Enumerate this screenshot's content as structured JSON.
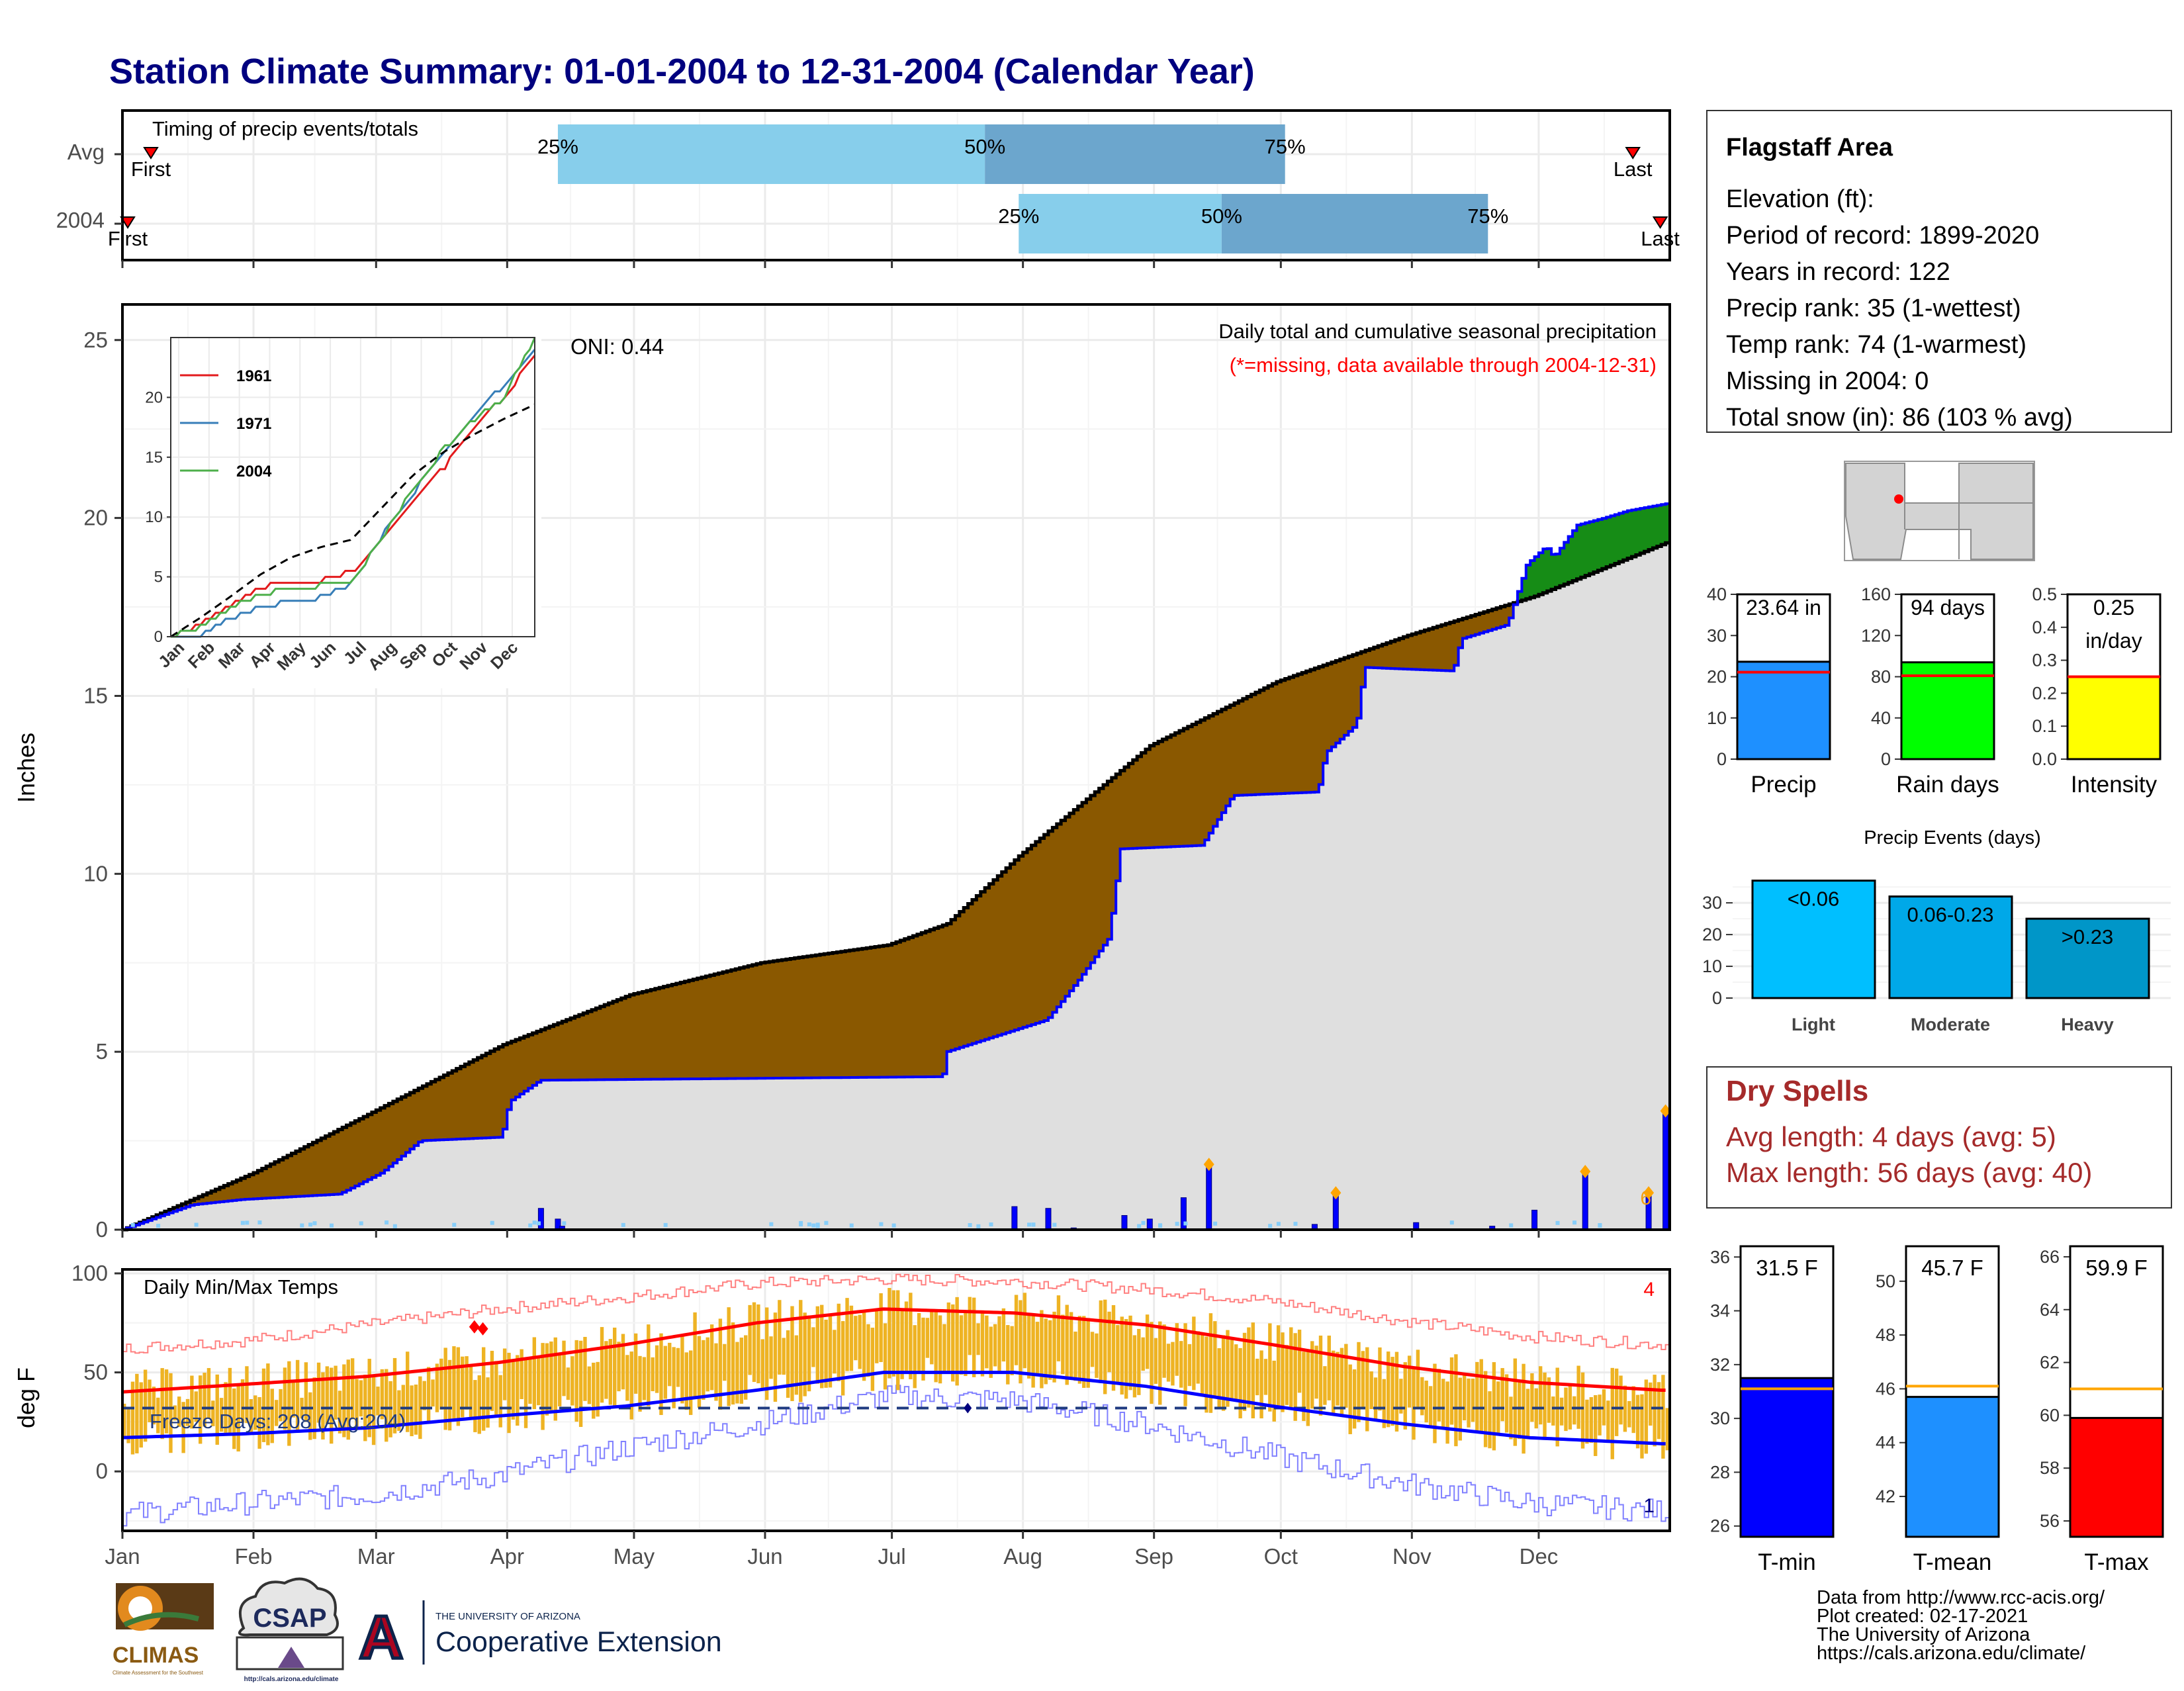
{
  "page_title": "Station Climate Summary: 01-01-2004 to 12-31-2004 (Calendar Year)",
  "months": [
    "Jan",
    "Feb",
    "Mar",
    "Apr",
    "May",
    "Jun",
    "Jul",
    "Aug",
    "Sep",
    "Oct",
    "Nov",
    "Dec"
  ],
  "colors": {
    "title": "#00007f",
    "dry_spell_red": "#a52a2a",
    "brown": "#8a5800",
    "green": "#168c16",
    "blue_line": "#0000ff",
    "grey_fill": "#dfdfdf",
    "temp_bar": "#eeb323",
    "precip_bar": "#1e90ff",
    "rain_bar": "#00ff00",
    "intensity_bar": "#ffff00",
    "light": "#00bfff",
    "moderate": "#00a8e8",
    "heavy": "#0096c8",
    "tmin": "#0000ff",
    "tmean": "#1e90ff",
    "tmax": "#ff0000"
  },
  "chart_data": [
    {
      "id": "timing",
      "type": "bar",
      "title": "Timing of precip events/totals",
      "rows": [
        {
          "label": "Avg",
          "first": "First",
          "last": "Last",
          "first_doy": 1,
          "last_doy": 365,
          "p25_doy": 104,
          "p50_doy": 205,
          "p75_doy": 276,
          "p25_label": "25%",
          "p50_label": "50%",
          "p75_label": "75%"
        },
        {
          "label": "2004",
          "first": "First",
          "last": "Last",
          "first_doy": 1,
          "last_doy": 366,
          "p25_doy": 213,
          "p50_doy": 261,
          "p75_doy": 324,
          "p25_label": "25%",
          "p50_label": "50%",
          "p75_label": "75%"
        }
      ]
    },
    {
      "id": "cumulative_precip",
      "type": "area",
      "title": "Daily total and cumulative seasonal precipitation",
      "subtitle": "(*=missing, data available through 2004-12-31)",
      "oni_label": "ONI: 0.44",
      "ylabel": "Inches",
      "ylim": [
        0,
        26
      ],
      "yticks": [
        0,
        5,
        10,
        15,
        20,
        25
      ],
      "corner_count": "6",
      "avg_cumulative": [
        [
          1,
          0
        ],
        [
          32,
          1.6
        ],
        [
          60,
          3.3
        ],
        [
          91,
          5.2
        ],
        [
          121,
          6.6
        ],
        [
          152,
          7.5
        ],
        [
          182,
          8.0
        ],
        [
          196,
          8.6
        ],
        [
          213,
          10.5
        ],
        [
          244,
          13.6
        ],
        [
          274,
          15.4
        ],
        [
          305,
          16.7
        ],
        [
          335,
          17.8
        ],
        [
          366,
          19.3
        ]
      ],
      "cumulative_2004": [
        [
          1,
          0
        ],
        [
          19,
          0.7
        ],
        [
          32,
          0.85
        ],
        [
          57,
          1.0
        ],
        [
          68,
          1.6
        ],
        [
          78,
          2.5
        ],
        [
          99,
          2.6
        ],
        [
          101,
          3.6
        ],
        [
          109,
          4.2
        ],
        [
          213,
          4.3
        ],
        [
          214,
          5.0
        ],
        [
          240,
          5.9
        ],
        [
          248,
          7.0
        ],
        [
          256,
          8.2
        ],
        [
          259,
          10.7
        ],
        [
          280,
          10.8
        ],
        [
          288,
          12.2
        ],
        [
          310,
          12.3
        ],
        [
          312,
          13.4
        ],
        [
          320,
          14.2
        ],
        [
          322,
          15.8
        ],
        [
          345,
          15.7
        ],
        [
          347,
          16.6
        ],
        [
          359,
          17.0
        ],
        [
          364,
          18.7
        ],
        [
          369,
          19.2
        ],
        [
          371,
          18.9
        ],
        [
          377,
          19.8
        ],
        [
          384,
          20.0
        ],
        [
          390,
          20.2
        ],
        [
          395,
          20.3
        ],
        [
          400,
          20.4
        ]
      ],
      "daily_bars": [
        [
          100,
          0.6
        ],
        [
          104,
          0.3
        ],
        [
          105,
          0.1
        ],
        [
          212,
          0.65
        ],
        [
          220,
          0.6
        ],
        [
          226,
          0.05
        ],
        [
          238,
          0.4
        ],
        [
          244,
          0.3
        ],
        [
          252,
          0.9
        ],
        [
          258,
          1.8
        ],
        [
          283,
          0.15
        ],
        [
          288,
          1.0
        ],
        [
          307,
          0.2
        ],
        [
          325,
          0.1
        ],
        [
          335,
          0.55
        ],
        [
          347,
          1.6
        ],
        [
          362,
          1.0
        ],
        [
          366,
          3.3
        ]
      ],
      "inset": {
        "ylim": [
          0,
          25
        ],
        "yticks": [
          0,
          5,
          10,
          15,
          20
        ],
        "xlabels": [
          "Jan",
          "Feb",
          "Mar",
          "Apr",
          "May",
          "Jun",
          "Jul",
          "Aug",
          "Sep",
          "Oct",
          "Nov",
          "Dec"
        ],
        "series": [
          {
            "name": "1961",
            "color": "#e31a1c",
            "values": [
              [
                0,
                0
              ],
              [
                30,
                1
              ],
              [
                59,
                2.5
              ],
              [
                90,
                4.2
              ],
              [
                151,
                4.7
              ],
              [
                181,
                5.4
              ],
              [
                212,
                8
              ],
              [
                243,
                11.5
              ],
              [
                273,
                14
              ],
              [
                304,
                17.5
              ],
              [
                334,
                20
              ],
              [
                365,
                23.4
              ]
            ]
          },
          {
            "name": "1971",
            "color": "#377eb8",
            "values": [
              [
                0,
                0
              ],
              [
                30,
                0.2
              ],
              [
                59,
                1.5
              ],
              [
                90,
                2.5
              ],
              [
                151,
                3.3
              ],
              [
                181,
                4.3
              ],
              [
                212,
                8.5
              ],
              [
                243,
                12
              ],
              [
                273,
                15.5
              ],
              [
                304,
                18.5
              ],
              [
                334,
                21
              ],
              [
                365,
                23.8
              ]
            ]
          },
          {
            "name": "2004",
            "color": "#4daf4a",
            "values": [
              [
                0,
                0
              ],
              [
                30,
                0.8
              ],
              [
                59,
                2.4
              ],
              [
                90,
                3.6
              ],
              [
                151,
                4.3
              ],
              [
                181,
                4.3
              ],
              [
                212,
                8.3
              ],
              [
                243,
                12.3
              ],
              [
                273,
                15.6
              ],
              [
                304,
                18.1
              ],
              [
                334,
                20
              ],
              [
                365,
                25
              ]
            ]
          },
          {
            "name": "avg",
            "color": "#000000",
            "dashed": true,
            "values": [
              [
                0,
                0
              ],
              [
                30,
                1.6
              ],
              [
                59,
                3.3
              ],
              [
                90,
                5.2
              ],
              [
                120,
                6.6
              ],
              [
                151,
                7.5
              ],
              [
                181,
                8.1
              ],
              [
                212,
                10.8
              ],
              [
                243,
                13.5
              ],
              [
                273,
                15.4
              ],
              [
                304,
                16.9
              ],
              [
                334,
                18.2
              ],
              [
                365,
                19.4
              ]
            ]
          }
        ]
      }
    },
    {
      "id": "temps",
      "type": "line",
      "title": "Daily Min/Max Temps",
      "ylabel": "deg F",
      "ylim": [
        -30,
        102
      ],
      "yticks": [
        0,
        50,
        100
      ],
      "freeze_label": "Freeze Days: 208 (Avg:204)",
      "freeze_line": 32,
      "count_high": "4",
      "count_low": "1",
      "avg_max": [
        [
          0,
          40
        ],
        [
          30,
          44
        ],
        [
          59,
          48
        ],
        [
          90,
          55
        ],
        [
          120,
          64
        ],
        [
          151,
          75
        ],
        [
          181,
          82
        ],
        [
          212,
          80
        ],
        [
          243,
          74
        ],
        [
          273,
          64
        ],
        [
          304,
          53
        ],
        [
          334,
          45
        ],
        [
          365,
          41
        ]
      ],
      "avg_min": [
        [
          0,
          17
        ],
        [
          30,
          19
        ],
        [
          59,
          22
        ],
        [
          90,
          28
        ],
        [
          120,
          33
        ],
        [
          151,
          41
        ],
        [
          181,
          50
        ],
        [
          212,
          50
        ],
        [
          243,
          43
        ],
        [
          273,
          33
        ],
        [
          304,
          24
        ],
        [
          334,
          17
        ],
        [
          365,
          14
        ]
      ],
      "record_max": [
        [
          0,
          62
        ],
        [
          30,
          66
        ],
        [
          59,
          74
        ],
        [
          90,
          82
        ],
        [
          120,
          88
        ],
        [
          151,
          95
        ],
        [
          181,
          97
        ],
        [
          212,
          96
        ],
        [
          243,
          92
        ],
        [
          273,
          86
        ],
        [
          304,
          76
        ],
        [
          334,
          68
        ],
        [
          365,
          64
        ]
      ],
      "record_min": [
        [
          0,
          -22
        ],
        [
          30,
          -16
        ],
        [
          59,
          -12
        ],
        [
          90,
          -2
        ],
        [
          120,
          12
        ],
        [
          151,
          24
        ],
        [
          181,
          38
        ],
        [
          212,
          36
        ],
        [
          243,
          24
        ],
        [
          273,
          8
        ],
        [
          304,
          -6
        ],
        [
          334,
          -16
        ],
        [
          365,
          -20
        ]
      ]
    },
    {
      "id": "percentile_bars",
      "type": "bar",
      "categories": [
        "Precip",
        "Rain days",
        "Intensity"
      ],
      "values": [
        23.64,
        94,
        0.25
      ],
      "value_labels": [
        "23.64 in",
        "94 days",
        "0.25 in/day"
      ],
      "averages": [
        21.1,
        81,
        0.25
      ],
      "ylims": [
        [
          0,
          40
        ],
        [
          0,
          160
        ],
        [
          0,
          0.5
        ]
      ],
      "yticks": [
        [
          "40",
          "30",
          "20",
          "10",
          "0"
        ],
        [
          "160",
          "120",
          "80",
          "40",
          "0"
        ],
        [
          "0.5",
          "0.4",
          "0.3",
          "0.2",
          "0.1",
          "0.0"
        ]
      ]
    },
    {
      "id": "precip_events",
      "type": "bar",
      "title": "Precip Events (days)",
      "categories": [
        "Light",
        "Moderate",
        "Heavy"
      ],
      "bar_labels": [
        "<0.06",
        "0.06-0.23",
        ">0.23"
      ],
      "values": [
        37,
        32,
        25
      ],
      "ylim": [
        0,
        40
      ],
      "yticks": [
        "30",
        "20",
        "10",
        "0"
      ]
    },
    {
      "id": "temp_bars",
      "type": "bar",
      "categories": [
        "T-min",
        "T-mean",
        "T-max"
      ],
      "values": [
        31.5,
        45.7,
        59.9
      ],
      "value_labels": [
        "31.5 F",
        "45.7 F",
        "59.9 F"
      ],
      "averages": [
        31.1,
        46.1,
        61.0
      ],
      "ylims": [
        [
          25.6,
          36.4
        ],
        [
          40.5,
          51.3
        ],
        [
          55.4,
          66.4
        ]
      ],
      "yticks": [
        [
          "36",
          "34",
          "32",
          "30",
          "28",
          "26"
        ],
        [
          "50",
          "48",
          "46",
          "44",
          "42"
        ],
        [
          "66",
          "64",
          "62",
          "60",
          "58",
          "56"
        ]
      ]
    }
  ],
  "info": {
    "station": "Flagstaff Area",
    "lines": [
      "Elevation (ft):",
      "Period of record: 1899-2020",
      "Years in record: 122",
      "Precip rank: 35 (1-wettest)",
      "Temp rank: 74 (1-warmest)",
      "Missing in 2004: 0",
      "Total snow (in): 86 (103 % avg)"
    ]
  },
  "dry_spells": {
    "title": "Dry Spells",
    "avg_length": "Avg length: 4 days (avg: 5)",
    "max_length": "Max length: 56 days (avg: 40)"
  },
  "credits": {
    "line1": "Data from http://www.rcc-acis.org/",
    "line2": "Plot created: 02-17-2021",
    "line3": "The University of Arizona",
    "line4": "https://cals.arizona.edu/climate/"
  },
  "logos": {
    "climas": "CLIMAS",
    "climas_sub": "Climate Assessment for the Southwest",
    "csap": "CSAP",
    "csap_url": "http://cals.arizona.edu/climate",
    "ua_letter": "A",
    "ua_small": "THE UNIVERSITY OF ARIZONA",
    "ua_big": "Cooperative Extension"
  }
}
